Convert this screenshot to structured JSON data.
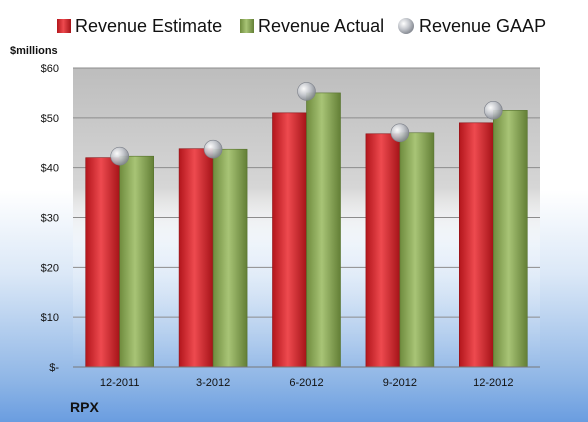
{
  "chart_data": {
    "type": "bar",
    "categories": [
      "12-2011",
      "3-2012",
      "6-2012",
      "9-2012",
      "12-2012"
    ],
    "series": [
      {
        "name": "Revenue Estimate",
        "values": [
          42.0,
          43.8,
          51.0,
          46.8,
          49.0
        ],
        "color": "#d9262b"
      },
      {
        "name": "Revenue Actual",
        "values": [
          42.3,
          43.7,
          55.0,
          47.0,
          51.5
        ],
        "color": "#8fae5a"
      }
    ],
    "gaap": {
      "name": "Revenue GAAP",
      "values": [
        42.3,
        43.7,
        55.3,
        47.0,
        51.5
      ],
      "color": "#b8bcc4"
    },
    "y_unit_label": "$millions",
    "y_ticks": [
      "$-",
      "$10",
      "$20",
      "$30",
      "$40",
      "$50",
      "$60"
    ],
    "ylim": [
      0,
      60
    ],
    "grid": true,
    "legend_placement": "top",
    "ticker": "RPX"
  }
}
